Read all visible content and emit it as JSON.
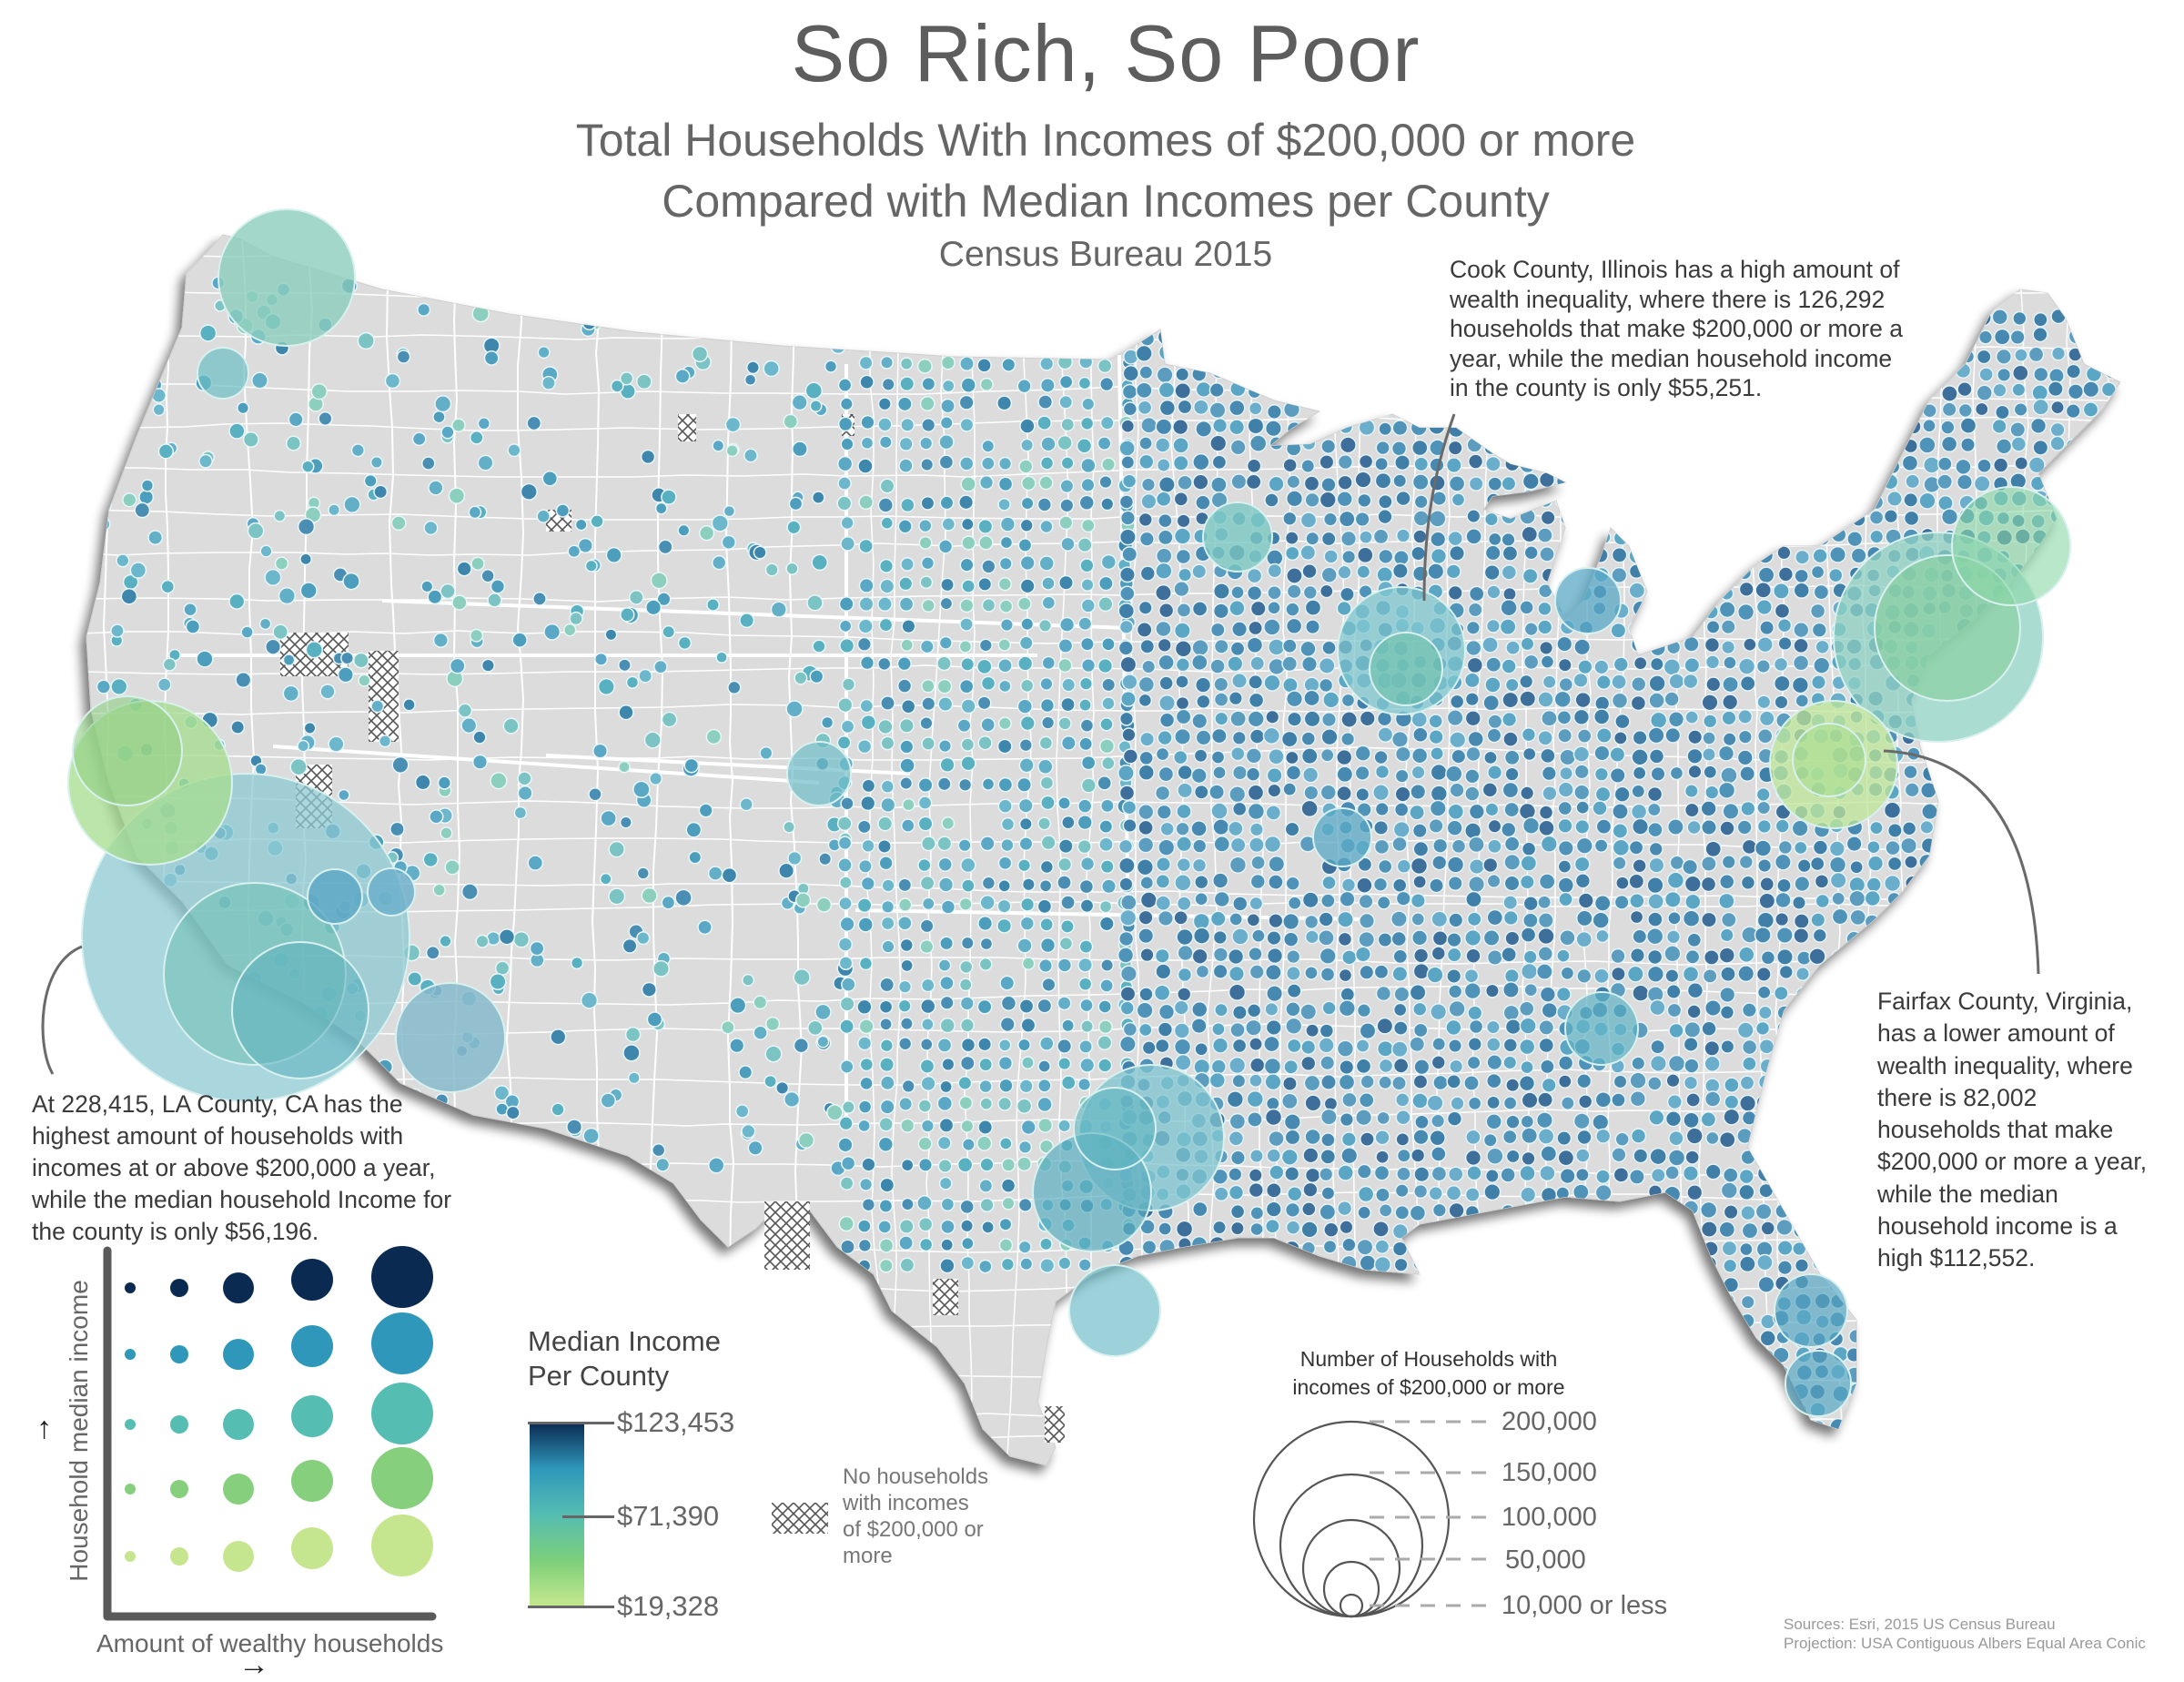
{
  "header": {
    "title": "So Rich, So Poor",
    "subtitle_line1": "Total Households With Incomes of $200,000 or more",
    "subtitle_line2": "Compared with Median Incomes per County",
    "subtitle_line3": "Census Bureau 2015"
  },
  "annotations": {
    "cook": {
      "lines": [
        "Cook County, Illinois has a high amount of",
        "wealth inequality, where there is 126,292",
        "households that make $200,000 or more a",
        "year, while the median household income",
        "in the county is only $55,251."
      ],
      "households": 126292,
      "median_income": 55251
    },
    "fairfax": {
      "lines": [
        "Fairfax County, Virginia,",
        "has a lower amount of",
        "wealth inequality, where",
        "there is 82,002",
        "households that make",
        "$200,000 or more a year,",
        "while the median",
        "household income is a",
        "high $112,552."
      ],
      "households": 82002,
      "median_income": 112552
    },
    "la": {
      "lines": [
        "At 228,415, LA County, CA has the",
        "highest amount of households with",
        "incomes at or above $200,000 a year,",
        "while the median household Income for",
        "the county is only $56,196."
      ],
      "households": 228415,
      "median_income": 56196
    }
  },
  "bivariate_legend": {
    "y_axis_label": "Household median income",
    "x_axis_label": "Amount of wealthy households",
    "y_arrow": "↑",
    "x_arrow": "→",
    "row_colors": [
      "#0b2a52",
      "#2e97ba",
      "#55bdb2",
      "#86cf7c",
      "#c5e68e"
    ],
    "column_sizes": [
      6,
      10,
      17,
      23,
      34
    ]
  },
  "income_legend": {
    "title_line1": "Median Income",
    "title_line2": "Per County",
    "max_label": "$123,453",
    "mid_label": "$71,390",
    "min_label": "$19,328",
    "gradient": [
      "#0b2a52",
      "#2e97ba",
      "#55bdb2",
      "#7ccf7a",
      "#c5e88e"
    ]
  },
  "hatch_legend": {
    "lines": [
      "No households",
      "with incomes",
      "of $200,000 or",
      "more"
    ]
  },
  "size_legend": {
    "title_line1": "Number of Households with",
    "title_line2": "incomes of $200,000 or more",
    "items": [
      {
        "label": "200,000",
        "radius": 107
      },
      {
        "label": "150,000",
        "radius": 78
      },
      {
        "label": "100,000",
        "radius": 53
      },
      {
        "label": "50,000",
        "radius": 30
      },
      {
        "label": "10,000 or less",
        "radius": 12
      }
    ]
  },
  "footer": {
    "sources": "Sources: Esri, 2015 US Census Bureau",
    "projection": "Projection: USA Contiguous Albers Equal Area Conic"
  },
  "colors": {
    "land": "#dcdcdc",
    "county_border": "#ffffff",
    "shadow": "#8a8a8a",
    "text_dark": "#3a3a3a",
    "text_mid": "#666666"
  },
  "chart_data": {
    "type": "bivariate proportional symbol map",
    "title": "So Rich, So Poor",
    "subtitle": "Total Households With Incomes of $200,000 or more Compared with Median Incomes per County — Census Bureau 2015",
    "size_variable": "Number of households with incomes of $200,000 or more",
    "size_breaks": [
      10000,
      50000,
      100000,
      150000,
      200000
    ],
    "color_variable": "Median income per county",
    "color_range": [
      19328,
      71390,
      123453
    ],
    "highlighted": [
      {
        "county": "Los Angeles County, CA",
        "households_200k_plus": 228415,
        "median_income": 56196
      },
      {
        "county": "Cook County, IL",
        "households_200k_plus": 126292,
        "median_income": 55251
      },
      {
        "county": "Fairfax County, VA",
        "households_200k_plus": 82002,
        "median_income": 112552
      }
    ],
    "legend_position": "bottom"
  }
}
